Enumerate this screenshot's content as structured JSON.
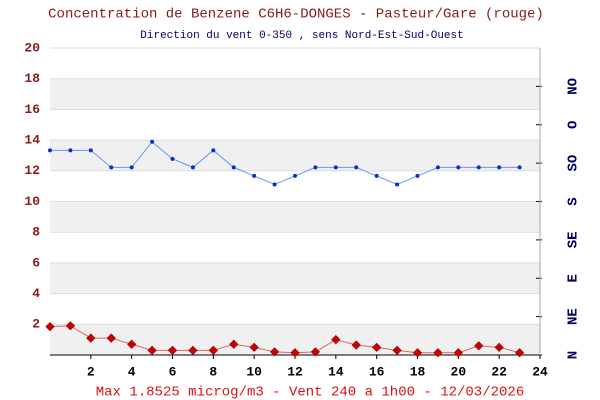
{
  "chart_data": {
    "type": "line",
    "title": "Concentration de Benzene C6H6-DONGES - Pasteur/Gare (rouge)",
    "subtitle": "Direction du vent 0-350 , sens Nord-Est-Sud-Ouest",
    "footer": "Max 1.8525 microg/m3 - Vent 240  a 1h00 - 12/03/2026",
    "x": [
      0,
      1,
      2,
      3,
      4,
      5,
      6,
      7,
      8,
      9,
      10,
      11,
      12,
      13,
      14,
      15,
      16,
      17,
      18,
      19,
      20,
      21,
      22,
      23
    ],
    "xlim": [
      0,
      24
    ],
    "xticks": [
      2,
      4,
      6,
      8,
      10,
      12,
      14,
      16,
      18,
      20,
      22,
      24
    ],
    "ylim": [
      0,
      20
    ],
    "yticks": [
      2,
      4,
      6,
      8,
      10,
      12,
      14,
      16,
      18,
      20
    ],
    "y2lim": [
      0,
      360
    ],
    "y2ticks": [
      {
        "value": 0,
        "label": "N"
      },
      {
        "value": 45,
        "label": "NE"
      },
      {
        "value": 90,
        "label": "E"
      },
      {
        "value": 135,
        "label": "SE"
      },
      {
        "value": 180,
        "label": "S"
      },
      {
        "value": 225,
        "label": "SO"
      },
      {
        "value": 270,
        "label": "O"
      },
      {
        "value": 315,
        "label": "NO"
      }
    ],
    "grid": true,
    "series": [
      {
        "name": "Benzene",
        "color": "#cc0000",
        "axis": "y",
        "values": [
          1.85,
          1.9,
          1.1,
          1.1,
          0.7,
          0.3,
          0.3,
          0.3,
          0.3,
          0.7,
          0.5,
          0.2,
          0.15,
          0.2,
          1.0,
          0.65,
          0.5,
          0.3,
          0.15,
          0.15,
          0.15,
          0.6,
          0.5,
          0.15
        ]
      },
      {
        "name": "Vent",
        "color": "#0033cc",
        "axis": "y2",
        "values": [
          240,
          240,
          240,
          220,
          220,
          250,
          230,
          220,
          240,
          220,
          210,
          200,
          210,
          220,
          220,
          220,
          210,
          200,
          210,
          220,
          220,
          220,
          220,
          220
        ]
      }
    ]
  }
}
